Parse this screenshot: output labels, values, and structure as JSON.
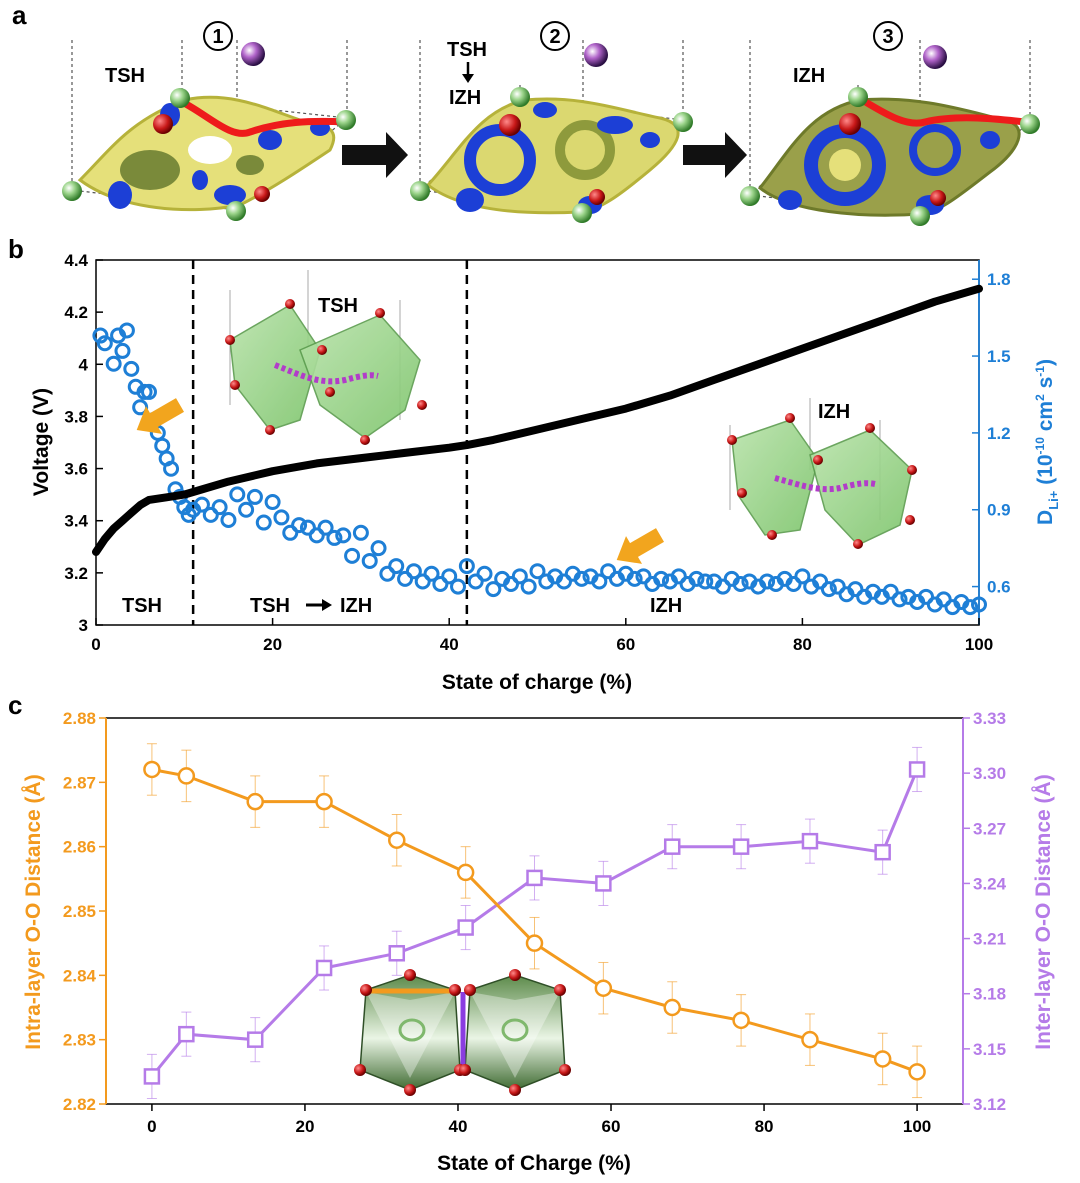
{
  "panel_a": {
    "letter": "a",
    "steps": [
      {
        "number": "1",
        "label": "TSH"
      },
      {
        "number": "2",
        "label_top": "TSH",
        "label_bottom": "IZH"
      },
      {
        "number": "3",
        "label": "IZH"
      }
    ]
  },
  "panel_b": {
    "letter": "b",
    "inset_labels": [
      "TSH",
      "IZH"
    ],
    "region_labels": [
      "TSH",
      "TSH",
      "IZH",
      "IZH"
    ],
    "colors": {
      "voltage": "#000000",
      "diffusion": "#1e7fd6",
      "arrow": "#f2a51e"
    }
  },
  "panel_c": {
    "letter": "c",
    "colors": {
      "intra": "#f39a1e",
      "inter": "#b57be8",
      "octahedron": "#4a6f3c"
    }
  },
  "chart_data": [
    {
      "type": "line",
      "xlabel": "State of charge (%)",
      "ylabel": "Voltage (V)",
      "y2label": "D",
      "y2label_sub": "Li+",
      "y2label_units_pre": " (10",
      "y2label_exp1": "-10",
      "y2label_units_mid": " cm",
      "y2label_exp2": "2",
      "y2label_units_mid2": " s",
      "y2label_exp3": "-1",
      "y2label_units_post": ")",
      "xlim": [
        0,
        100
      ],
      "ylim": [
        3.0,
        4.4
      ],
      "y2lim": [
        0.45,
        1.875
      ],
      "xticks": [
        0,
        20,
        40,
        60,
        80,
        100
      ],
      "yticks": [
        "3",
        "3.2",
        "3.4",
        "3.6",
        "3.8",
        "4",
        "4.2",
        "4.4"
      ],
      "y2ticks": [
        "0.6",
        "0.9",
        "1.2",
        "1.5",
        "1.8"
      ],
      "phase_boundaries": [
        11,
        42
      ],
      "series": [
        {
          "name": "Voltage",
          "axis": "left",
          "style": "line",
          "x": [
            0,
            1,
            2,
            3,
            4,
            5,
            6,
            8,
            10,
            12,
            15,
            20,
            25,
            30,
            35,
            40,
            42,
            45,
            50,
            55,
            60,
            65,
            70,
            75,
            80,
            85,
            90,
            95,
            100
          ],
          "y": [
            3.28,
            3.33,
            3.37,
            3.4,
            3.43,
            3.46,
            3.48,
            3.49,
            3.5,
            3.52,
            3.55,
            3.59,
            3.62,
            3.64,
            3.66,
            3.68,
            3.69,
            3.71,
            3.75,
            3.79,
            3.83,
            3.88,
            3.94,
            4.0,
            4.06,
            4.12,
            4.18,
            4.24,
            4.29
          ]
        },
        {
          "name": "D_Li+",
          "axis": "right",
          "style": "scatter",
          "x": [
            0.5,
            1,
            2,
            2.5,
            3,
            3.5,
            4,
            4.5,
            5,
            5.5,
            6,
            6.5,
            7,
            7.5,
            8,
            8.5,
            9,
            9.5,
            10,
            10.5,
            11,
            12,
            13,
            14,
            15,
            16,
            17,
            18,
            19,
            20,
            21,
            22,
            23,
            24,
            25,
            26,
            27,
            28,
            29,
            30,
            31,
            32,
            33,
            34,
            35,
            36,
            37,
            38,
            39,
            40,
            41,
            42,
            43,
            44,
            45,
            46,
            47,
            48,
            49,
            50,
            51,
            52,
            53,
            54,
            55,
            56,
            57,
            58,
            59,
            60,
            61,
            62,
            63,
            64,
            65,
            66,
            67,
            68,
            69,
            70,
            71,
            72,
            73,
            74,
            75,
            76,
            77,
            78,
            79,
            80,
            81,
            82,
            83,
            84,
            85,
            86,
            87,
            88,
            89,
            90,
            91,
            92,
            93,
            94,
            95,
            96,
            97,
            98,
            99,
            100
          ],
          "y": [
            1.58,
            1.55,
            1.47,
            1.58,
            1.52,
            1.6,
            1.45,
            1.38,
            1.3,
            1.36,
            1.36,
            1.25,
            1.2,
            1.15,
            1.1,
            1.06,
            0.98,
            0.95,
            0.91,
            0.88,
            0.9,
            0.92,
            0.88,
            0.91,
            0.86,
            0.96,
            0.9,
            0.95,
            0.85,
            0.93,
            0.87,
            0.81,
            0.84,
            0.83,
            0.8,
            0.83,
            0.79,
            0.8,
            0.72,
            0.81,
            0.7,
            0.75,
            0.65,
            0.68,
            0.63,
            0.66,
            0.62,
            0.65,
            0.61,
            0.64,
            0.6,
            0.68,
            0.62,
            0.65,
            0.59,
            0.63,
            0.61,
            0.64,
            0.6,
            0.66,
            0.62,
            0.64,
            0.62,
            0.65,
            0.63,
            0.64,
            0.62,
            0.66,
            0.63,
            0.65,
            0.63,
            0.64,
            0.61,
            0.63,
            0.62,
            0.64,
            0.61,
            0.63,
            0.62,
            0.62,
            0.6,
            0.63,
            0.61,
            0.62,
            0.6,
            0.62,
            0.61,
            0.63,
            0.61,
            0.64,
            0.6,
            0.62,
            0.59,
            0.6,
            0.57,
            0.59,
            0.56,
            0.58,
            0.56,
            0.58,
            0.55,
            0.56,
            0.54,
            0.56,
            0.53,
            0.55,
            0.52,
            0.54,
            0.52,
            0.53
          ]
        }
      ]
    },
    {
      "type": "line",
      "xlabel": "State of Charge (%)",
      "ylabel": "Intra-layer O-O Distance (Å)",
      "y2label": "Inter-layer O-O Distance (Å)",
      "xlim": [
        -6,
        106
      ],
      "ylim": [
        2.82,
        2.88
      ],
      "y2lim": [
        3.12,
        3.33
      ],
      "xticks": [
        0,
        20,
        40,
        60,
        80,
        100
      ],
      "yticks": [
        "2.82",
        "2.83",
        "2.84",
        "2.85",
        "2.86",
        "2.87",
        "2.88"
      ],
      "y2ticks": [
        "3.12",
        "3.15",
        "3.18",
        "3.21",
        "3.24",
        "3.27",
        "3.30",
        "3.33"
      ],
      "series": [
        {
          "name": "Intra-layer",
          "axis": "left",
          "marker": "circle",
          "x": [
            0,
            4.5,
            13.5,
            22.5,
            32,
            41,
            50,
            59,
            68,
            77,
            86,
            95.5,
            100
          ],
          "y": [
            2.872,
            2.871,
            2.867,
            2.867,
            2.861,
            2.856,
            2.845,
            2.838,
            2.835,
            2.833,
            2.83,
            2.827,
            2.825
          ],
          "err": 0.004
        },
        {
          "name": "Inter-layer",
          "axis": "right",
          "marker": "square",
          "x": [
            0,
            4.5,
            13.5,
            22.5,
            32,
            41,
            50,
            59,
            68,
            77,
            86,
            95.5,
            100
          ],
          "y": [
            3.135,
            3.158,
            3.155,
            3.194,
            3.202,
            3.216,
            3.243,
            3.24,
            3.26,
            3.26,
            3.263,
            3.257,
            3.302
          ],
          "err": 0.012
        }
      ]
    }
  ]
}
